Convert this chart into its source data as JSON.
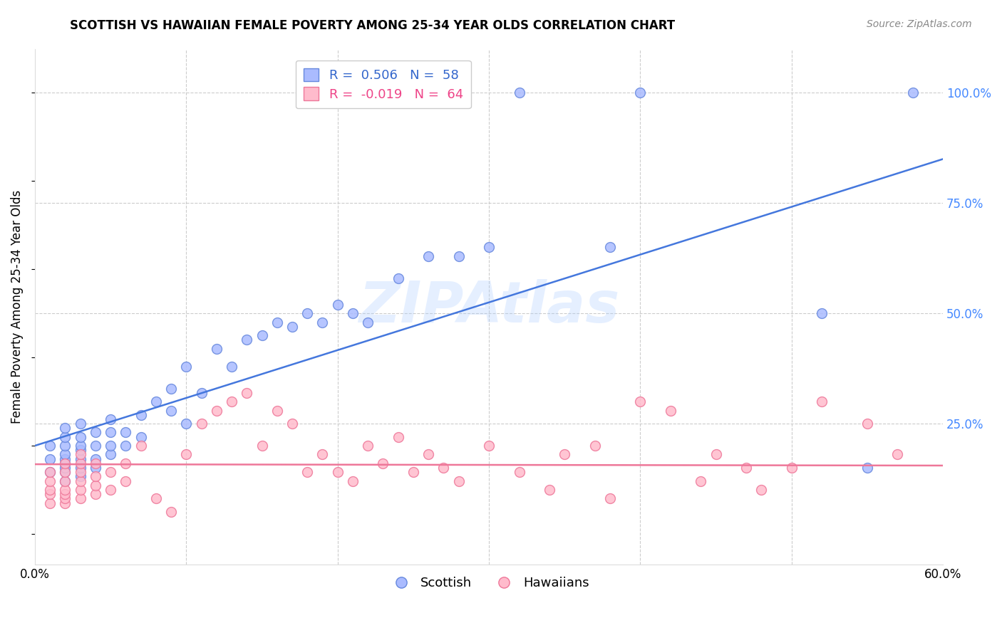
{
  "title": "SCOTTISH VS HAWAIIAN FEMALE POVERTY AMONG 25-34 YEAR OLDS CORRELATION CHART",
  "source": "Source: ZipAtlas.com",
  "ylabel": "Female Poverty Among 25-34 Year Olds",
  "xlim": [
    0.0,
    0.6
  ],
  "ylim": [
    -0.07,
    1.1
  ],
  "scottish_R": 0.506,
  "scottish_N": 58,
  "hawaiian_R": -0.019,
  "hawaiian_N": 64,
  "scottish_face": "#AABBFF",
  "scottish_edge": "#6688DD",
  "hawaiian_face": "#FFBBCC",
  "hawaiian_edge": "#EE7799",
  "trendline_scottish": "#4477DD",
  "trendline_hawaiian": "#EE7799",
  "watermark": "ZIPAtlas",
  "scottish_x": [
    0.01,
    0.01,
    0.01,
    0.02,
    0.02,
    0.02,
    0.02,
    0.02,
    0.02,
    0.02,
    0.02,
    0.02,
    0.03,
    0.03,
    0.03,
    0.03,
    0.03,
    0.03,
    0.03,
    0.04,
    0.04,
    0.04,
    0.04,
    0.05,
    0.05,
    0.05,
    0.05,
    0.06,
    0.06,
    0.07,
    0.07,
    0.08,
    0.09,
    0.09,
    0.1,
    0.1,
    0.11,
    0.12,
    0.13,
    0.14,
    0.15,
    0.16,
    0.17,
    0.18,
    0.19,
    0.2,
    0.21,
    0.22,
    0.24,
    0.26,
    0.28,
    0.3,
    0.32,
    0.38,
    0.4,
    0.52,
    0.55,
    0.58
  ],
  "scottish_y": [
    0.14,
    0.17,
    0.2,
    0.12,
    0.14,
    0.15,
    0.16,
    0.17,
    0.18,
    0.2,
    0.22,
    0.24,
    0.13,
    0.15,
    0.17,
    0.19,
    0.2,
    0.22,
    0.25,
    0.15,
    0.17,
    0.2,
    0.23,
    0.18,
    0.2,
    0.23,
    0.26,
    0.2,
    0.23,
    0.22,
    0.27,
    0.3,
    0.28,
    0.33,
    0.25,
    0.38,
    0.32,
    0.42,
    0.38,
    0.44,
    0.45,
    0.48,
    0.47,
    0.5,
    0.48,
    0.52,
    0.5,
    0.48,
    0.58,
    0.63,
    0.63,
    0.65,
    1.0,
    0.65,
    1.0,
    0.5,
    0.15,
    1.0
  ],
  "hawaiian_x": [
    0.01,
    0.01,
    0.01,
    0.01,
    0.01,
    0.02,
    0.02,
    0.02,
    0.02,
    0.02,
    0.02,
    0.02,
    0.03,
    0.03,
    0.03,
    0.03,
    0.03,
    0.03,
    0.04,
    0.04,
    0.04,
    0.04,
    0.05,
    0.05,
    0.06,
    0.06,
    0.07,
    0.08,
    0.09,
    0.1,
    0.11,
    0.12,
    0.13,
    0.14,
    0.15,
    0.16,
    0.17,
    0.18,
    0.19,
    0.2,
    0.21,
    0.22,
    0.23,
    0.24,
    0.25,
    0.26,
    0.27,
    0.28,
    0.3,
    0.32,
    0.34,
    0.35,
    0.37,
    0.38,
    0.4,
    0.42,
    0.44,
    0.45,
    0.47,
    0.48,
    0.5,
    0.52,
    0.55,
    0.57
  ],
  "hawaiian_y": [
    0.07,
    0.09,
    0.1,
    0.12,
    0.14,
    0.07,
    0.08,
    0.09,
    0.1,
    0.12,
    0.14,
    0.16,
    0.08,
    0.1,
    0.12,
    0.14,
    0.16,
    0.18,
    0.09,
    0.11,
    0.13,
    0.16,
    0.1,
    0.14,
    0.12,
    0.16,
    0.2,
    0.08,
    0.05,
    0.18,
    0.25,
    0.28,
    0.3,
    0.32,
    0.2,
    0.28,
    0.25,
    0.14,
    0.18,
    0.14,
    0.12,
    0.2,
    0.16,
    0.22,
    0.14,
    0.18,
    0.15,
    0.12,
    0.2,
    0.14,
    0.1,
    0.18,
    0.2,
    0.08,
    0.3,
    0.28,
    0.12,
    0.18,
    0.15,
    0.1,
    0.15,
    0.3,
    0.25,
    0.18
  ]
}
